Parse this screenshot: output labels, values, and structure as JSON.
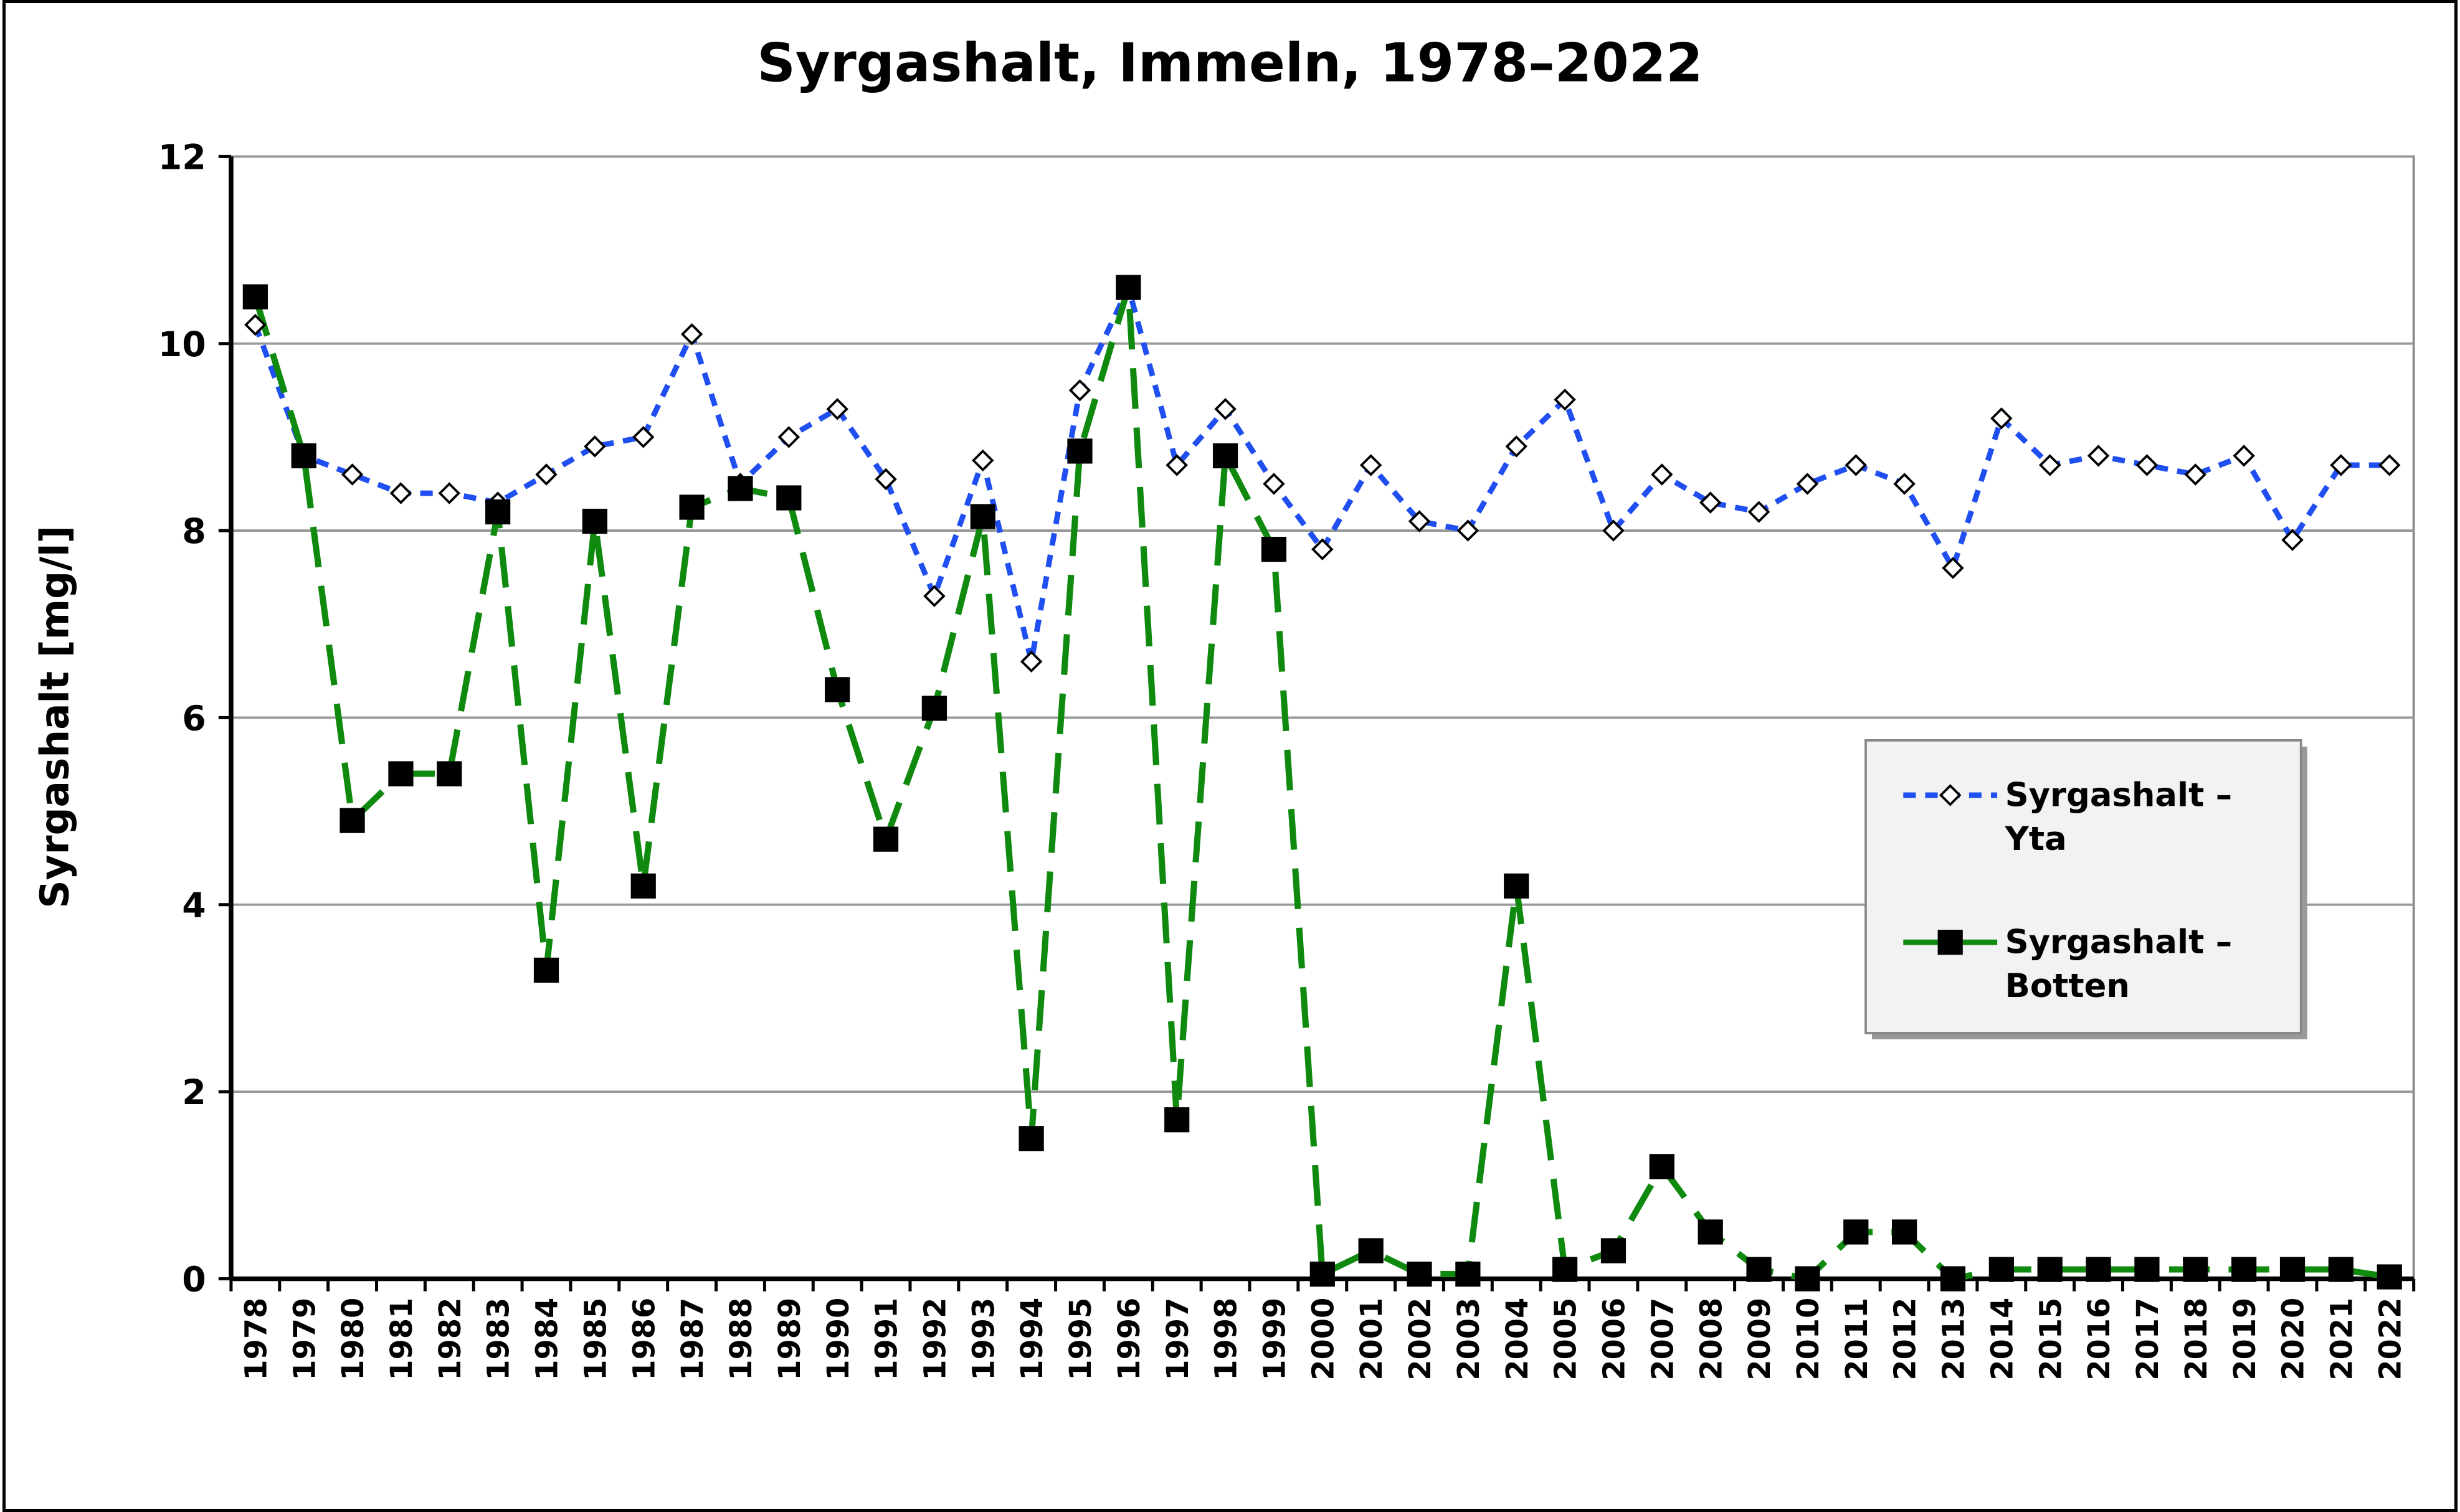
{
  "chart_data": {
    "type": "line",
    "title": "Syrgashalt, Immeln, 1978–2022",
    "y_label": "Syrgashalt [mg/l]",
    "categories": [
      "1978",
      "1979",
      "1980",
      "1981",
      "1982",
      "1983",
      "1984",
      "1985",
      "1986",
      "1987",
      "1988",
      "1989",
      "1990",
      "1991",
      "1992",
      "1993",
      "1994",
      "1995",
      "1996",
      "1997",
      "1998",
      "1999",
      "2000",
      "2001",
      "2002",
      "2003",
      "2004",
      "2005",
      "2006",
      "2007",
      "2008",
      "2009",
      "2010",
      "2011",
      "2012",
      "2013",
      "2014",
      "2015",
      "2016",
      "2017",
      "2018",
      "2019",
      "2020",
      "2021",
      "2022"
    ],
    "series": [
      {
        "name": "Syrgashalt – Yta",
        "color": "#1f4ff0",
        "marker": "diamond",
        "values": [
          10.2,
          8.8,
          8.6,
          8.4,
          8.4,
          8.3,
          8.6,
          8.9,
          9.0,
          10.1,
          8.5,
          9.0,
          9.3,
          8.55,
          7.3,
          8.75,
          6.6,
          9.5,
          10.6,
          8.7,
          9.3,
          8.5,
          7.8,
          8.7,
          8.1,
          8.0,
          8.9,
          9.4,
          8.0,
          8.6,
          8.3,
          8.2,
          8.5,
          8.7,
          8.5,
          7.6,
          9.2,
          8.7,
          8.8,
          8.7,
          8.6,
          8.8,
          7.9,
          8.7,
          8.7
        ]
      },
      {
        "name": "Syrgashalt – Botten",
        "color": "#0f8a0f",
        "marker": "square",
        "values": [
          10.5,
          8.8,
          4.9,
          5.4,
          5.4,
          8.2,
          3.3,
          8.1,
          4.2,
          8.25,
          8.45,
          8.35,
          6.3,
          4.7,
          6.1,
          8.15,
          1.5,
          8.85,
          10.6,
          1.7,
          8.8,
          7.8,
          0.05,
          0.3,
          0.05,
          0.05,
          4.2,
          0.1,
          0.3,
          1.2,
          0.5,
          0.1,
          0.0,
          0.5,
          0.5,
          0.0,
          0.1,
          0.1,
          0.1,
          0.1,
          0.1,
          0.1,
          0.1,
          0.1,
          0.02
        ]
      }
    ],
    "ylim": [
      0,
      12
    ],
    "yticks": [
      0,
      2,
      4,
      6,
      8,
      10,
      12
    ],
    "grid": true,
    "legend": "right"
  }
}
